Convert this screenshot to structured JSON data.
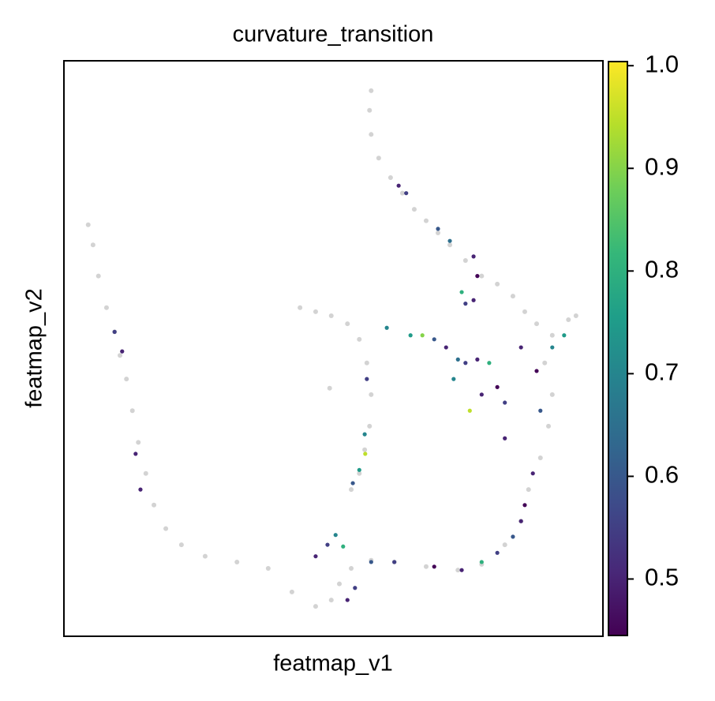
{
  "chart_data": {
    "type": "scatter",
    "title": "curvature_transition",
    "xlabel": "featmap_v1",
    "ylabel": "featmap_v2",
    "xlim": [
      0,
      100
    ],
    "ylim": [
      0,
      100
    ],
    "colormap": "viridis",
    "clim": [
      0.445,
      1.004
    ],
    "cticks": [
      0.5,
      0.6,
      0.7,
      0.8,
      0.9,
      {
        "value": 1,
        "label": "1.0"
      }
    ],
    "background": {
      "color": "#d3d3d3",
      "x": [
        57.0,
        56.7,
        57.0,
        58.4,
        60.6,
        62.8,
        65.0,
        67.2,
        69.4,
        71.6,
        74.5,
        77.5,
        80.4,
        83.3,
        85.5,
        87.7,
        90.6,
        93.6,
        95.0,
        4.5,
        5.4,
        6.4,
        7.9,
        9.4,
        10.4,
        11.6,
        12.7,
        13.8,
        15.2,
        16.7,
        18.9,
        21.8,
        26.2,
        32.1,
        37.9,
        42.3,
        46.7,
        49.6,
        51.1,
        53.3,
        57.0,
        61.3,
        67.2,
        73.1,
        77.5,
        81.8,
        84.8,
        86.2,
        88.4,
        89.9,
        90.6,
        89.2,
        43.8,
        46.7,
        49.6,
        52.6,
        54.8,
        56.2,
        57.0,
        56.7,
        55.8,
        54.8,
        53.3,
        49.3
      ],
      "y": [
        94.8,
        91.4,
        87.2,
        83.1,
        79.7,
        77.0,
        74.2,
        72.2,
        70.1,
        68.0,
        65.3,
        62.6,
        61.2,
        59.1,
        56.4,
        54.3,
        52.3,
        55.0,
        55.7,
        71.5,
        68.0,
        62.6,
        57.1,
        52.9,
        48.8,
        44.7,
        39.2,
        33.7,
        28.3,
        22.8,
        18.7,
        15.9,
        13.9,
        12.9,
        11.8,
        7.7,
        5.2,
        6.3,
        9.1,
        11.8,
        13.2,
        12.9,
        12.1,
        11.5,
        12.5,
        15.9,
        20.0,
        25.5,
        31.0,
        36.5,
        42.0,
        47.5,
        57.1,
        56.4,
        55.7,
        54.3,
        51.6,
        47.5,
        42.0,
        36.5,
        32.4,
        28.3,
        25.5,
        43.1
      ]
    },
    "x": [
      62.1,
      63.5,
      69.4,
      71.6,
      76.0,
      76.7,
      73.8,
      74.5,
      76.0,
      59.9,
      64.3,
      66.5,
      68.7,
      70.9,
      73.1,
      74.5,
      76.7,
      78.9,
      72.3,
      75.3,
      77.5,
      80.4,
      81.8,
      84.8,
      87.7,
      88.4,
      90.6,
      92.8,
      9.4,
      10.8,
      13.3,
      14.2,
      56.2,
      55.8,
      55.9,
      54.8,
      53.6,
      48.9,
      50.4,
      51.8,
      46.7,
      54.0,
      57.0,
      61.3,
      68.7,
      73.8,
      77.5,
      80.4,
      83.3,
      84.8,
      85.5,
      52.6,
      81.8,
      87.0
    ],
    "y": [
      78.3,
      77.0,
      70.8,
      68.7,
      66.0,
      62.6,
      59.8,
      57.8,
      58.4,
      53.6,
      52.3,
      52.3,
      51.6,
      50.2,
      48.1,
      47.5,
      48.1,
      47.5,
      44.7,
      39.2,
      42.0,
      43.3,
      40.6,
      50.2,
      46.1,
      39.2,
      50.2,
      52.3,
      52.9,
      49.5,
      31.7,
      25.5,
      44.7,
      35.1,
      31.7,
      28.9,
      26.6,
      15.9,
      17.6,
      15.6,
      13.9,
      8.4,
      12.9,
      12.9,
      12.1,
      11.5,
      12.9,
      14.5,
      17.3,
      20.0,
      22.8,
      6.3,
      34.4,
      28.3
    ],
    "values": [
      0.5,
      0.55,
      0.6,
      0.65,
      0.5,
      0.45,
      0.8,
      0.55,
      0.5,
      0.7,
      0.75,
      0.9,
      0.6,
      0.5,
      0.65,
      0.55,
      0.5,
      0.8,
      0.7,
      0.95,
      0.5,
      0.45,
      0.55,
      0.5,
      0.45,
      0.6,
      0.7,
      0.75,
      0.55,
      0.5,
      0.5,
      0.5,
      0.55,
      0.7,
      0.95,
      0.75,
      0.6,
      0.55,
      0.7,
      0.8,
      0.5,
      0.55,
      0.6,
      0.55,
      0.45,
      0.5,
      0.8,
      0.55,
      0.6,
      0.5,
      0.45,
      0.5,
      0.5,
      0.5
    ]
  }
}
